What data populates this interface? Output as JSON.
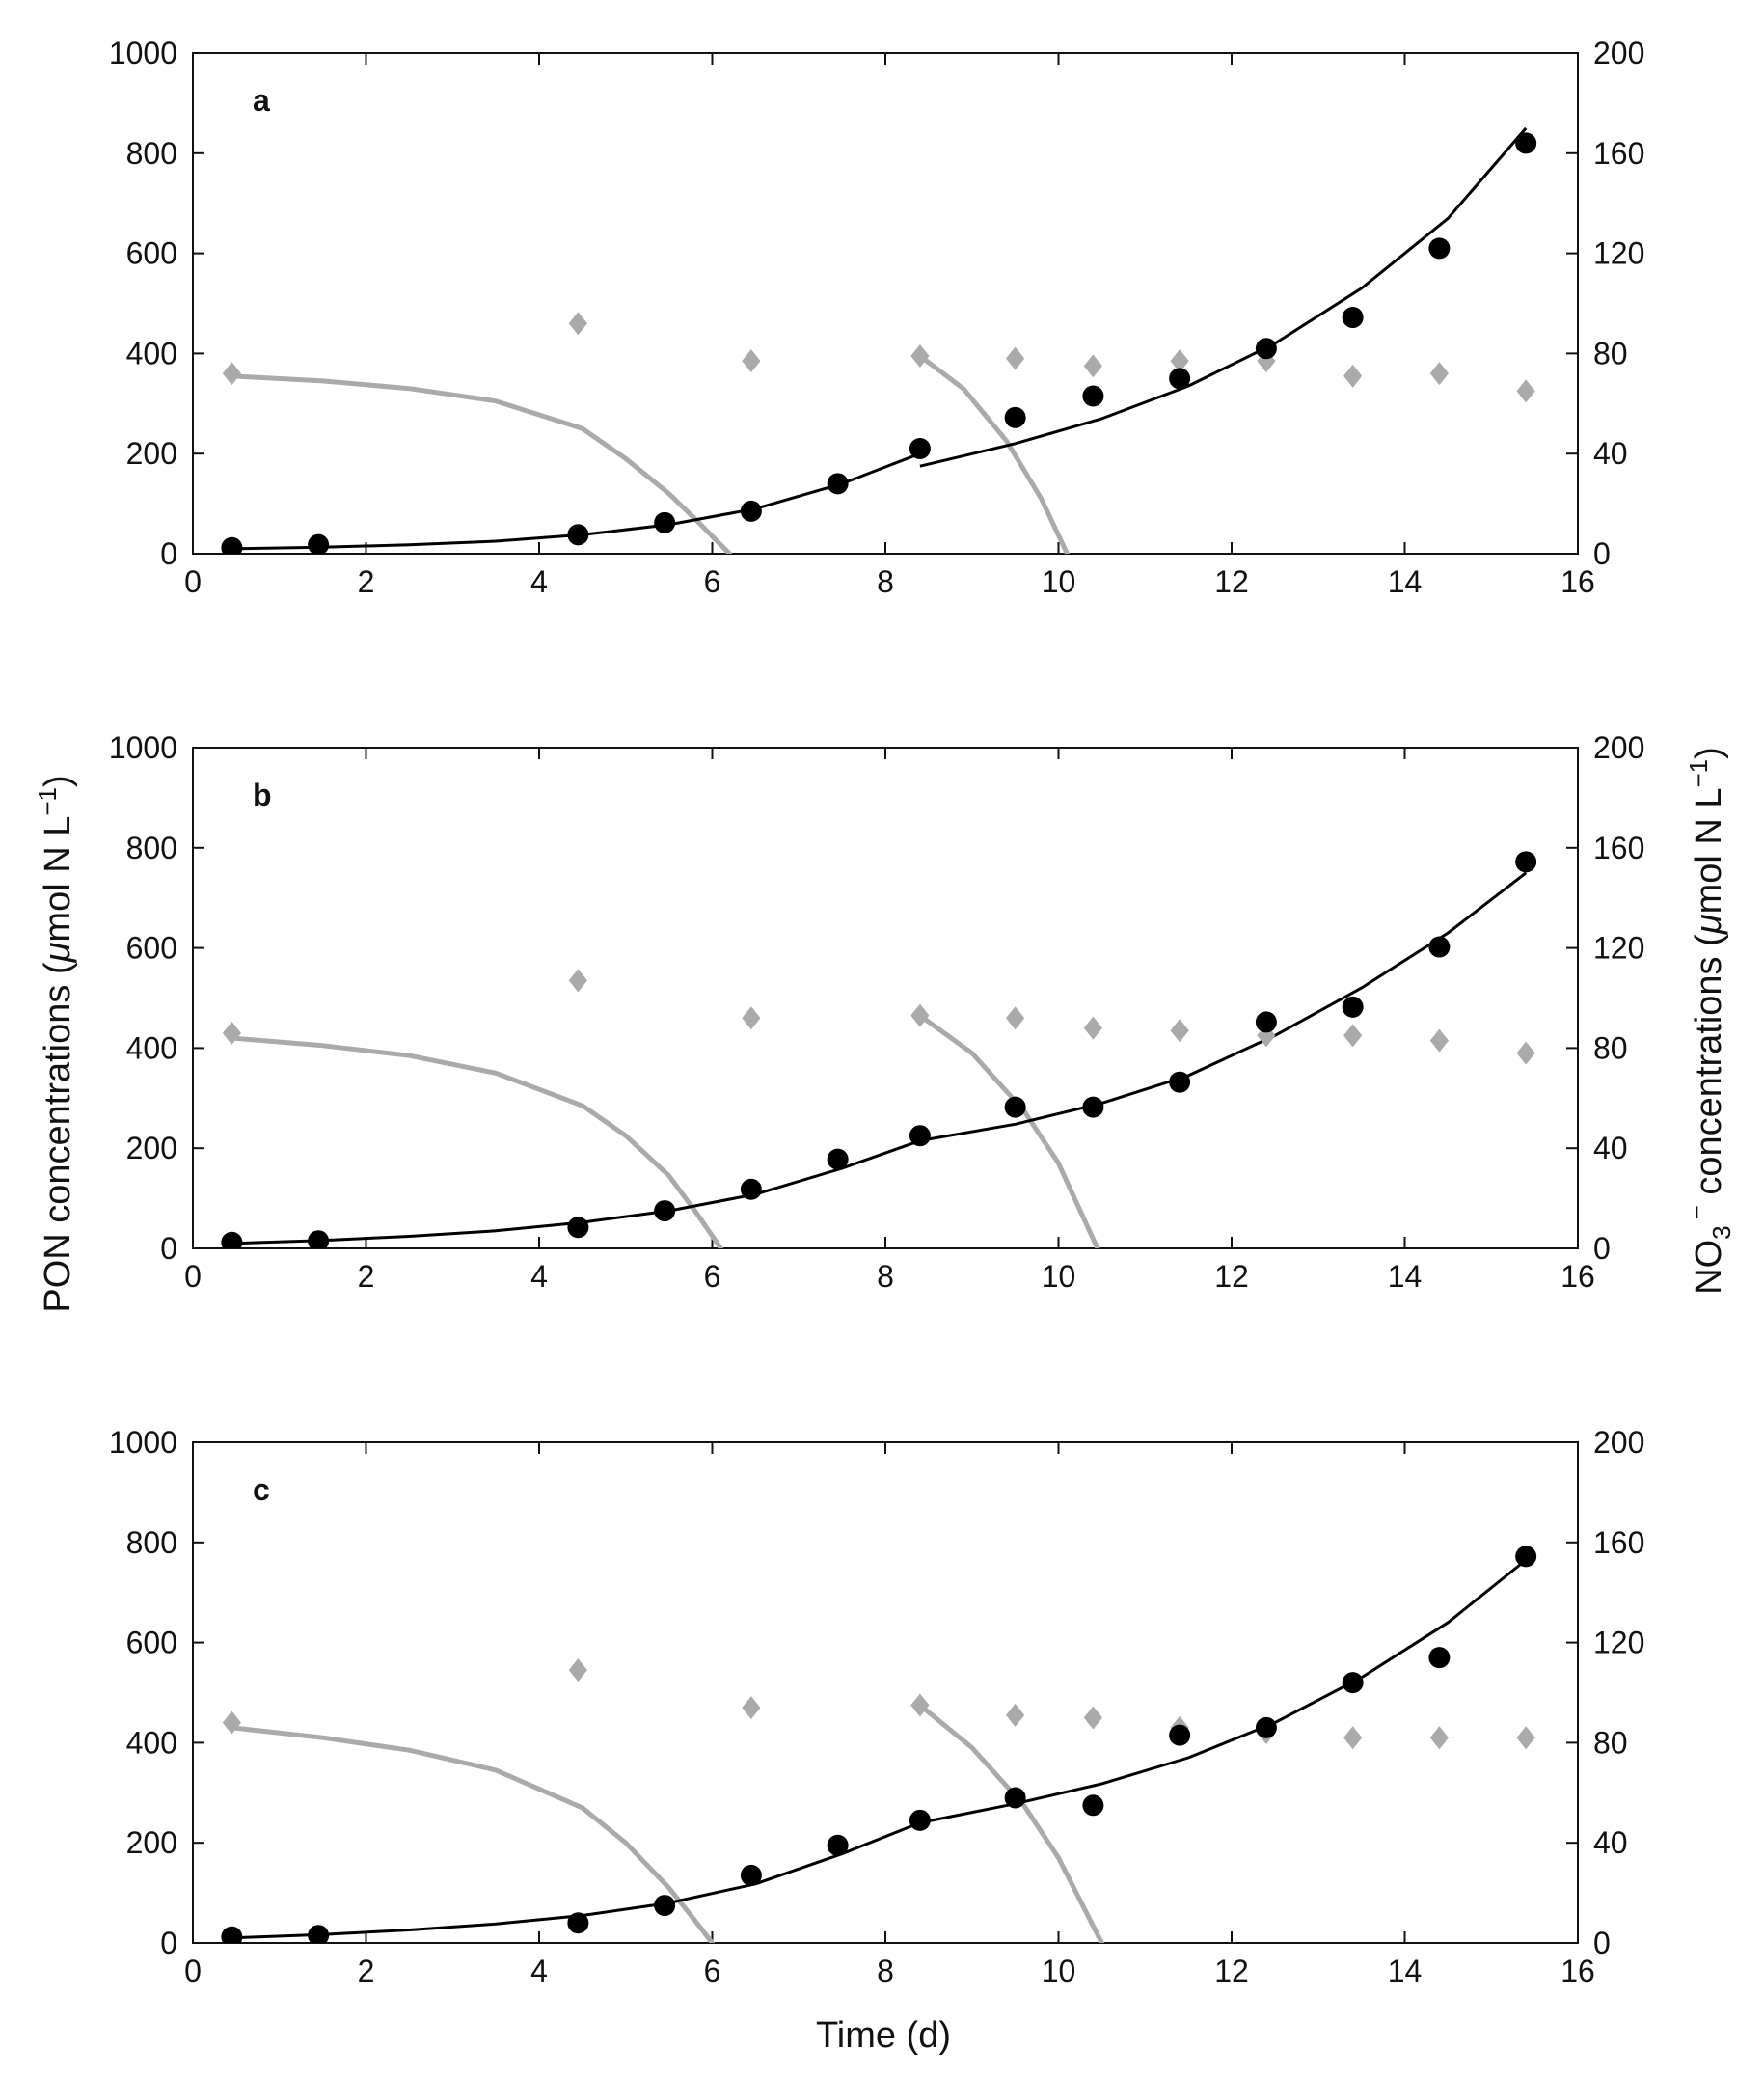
{
  "chart_data": {
    "type": "scatter",
    "xlabel": "Time (d)",
    "ylabel_left": {
      "main": "PON concentrations (",
      "mu": "μ",
      "rest": "mol N L",
      "sup": "−1",
      "end": ")"
    },
    "ylabel_right": {
      "main": "NO",
      "sub": "3",
      "sup_minus": "−",
      "rest": " concentrations (",
      "mu": "μ",
      "rest2": "mol N L",
      "sup": "−1",
      "end": ")"
    },
    "xlim": [
      0,
      16
    ],
    "xticks": [
      0,
      2,
      4,
      6,
      8,
      10,
      12,
      14,
      16
    ],
    "ylim_left": [
      0,
      1000
    ],
    "yticks_left": [
      0,
      200,
      400,
      600,
      800,
      1000
    ],
    "ylim_right": [
      0,
      200
    ],
    "yticks_right": [
      0,
      40,
      80,
      120,
      160,
      200
    ],
    "colors": {
      "pon": "#000000",
      "nitrate": "#aaaaaa",
      "axis": "#111111"
    },
    "panels": [
      {
        "label": "a",
        "pon_points": {
          "x": [
            0.45,
            1.45,
            4.45,
            5.45,
            6.45,
            7.45,
            8.4,
            9.5,
            10.4,
            11.4,
            12.4,
            13.4,
            14.4,
            15.4
          ],
          "y": [
            12,
            18,
            38,
            62,
            85,
            140,
            210,
            272,
            315,
            350,
            410,
            472,
            610,
            820
          ]
        },
        "no3_points": {
          "x": [
            0.45,
            4.45,
            6.45,
            8.4,
            9.5,
            10.4,
            11.4,
            12.4,
            13.4,
            14.4,
            15.4
          ],
          "y": [
            72,
            92,
            77,
            79,
            78,
            75,
            77,
            77,
            71,
            72,
            65
          ]
        },
        "pon_model": [
          {
            "x": [
              0.45,
              1.5,
              2.5,
              3.5,
              4.5,
              5.5,
              6.5,
              7.5,
              8.4
            ],
            "y": [
              10,
              13,
              18,
              25,
              38,
              58,
              90,
              140,
              200
            ]
          },
          {
            "x": [
              8.4,
              9.5,
              10.5,
              11.5,
              12.5,
              13.5,
              14.5,
              15.4
            ],
            "y": [
              175,
              220,
              270,
              335,
              420,
              530,
              670,
              850
            ]
          }
        ],
        "no3_model": [
          {
            "x": [
              0.45,
              1.5,
              2.5,
              3.5,
              4.5,
              5.0,
              5.5,
              5.8,
              6.2
            ],
            "y": [
              71,
              69,
              66,
              61,
              50,
              38,
              24,
              14,
              0
            ]
          },
          {
            "x": [
              8.4,
              8.9,
              9.4,
              9.8,
              10.1
            ],
            "y": [
              79,
              66,
              45,
              22,
              0
            ]
          }
        ]
      },
      {
        "label": "b",
        "pon_points": {
          "x": [
            0.45,
            1.45,
            4.45,
            5.45,
            6.45,
            7.45,
            8.4,
            9.5,
            10.4,
            11.4,
            12.4,
            13.4,
            14.4,
            15.4
          ],
          "y": [
            12,
            15,
            42,
            75,
            118,
            178,
            225,
            282,
            282,
            332,
            452,
            482,
            602,
            772
          ]
        },
        "no3_points": {
          "x": [
            0.45,
            4.45,
            6.45,
            8.4,
            9.5,
            10.4,
            11.4,
            12.4,
            13.4,
            14.4,
            15.4
          ],
          "y": [
            86,
            107,
            92,
            93,
            92,
            88,
            87,
            85,
            85,
            83,
            78
          ]
        },
        "pon_model": [
          {
            "x": [
              0.45,
              1.5,
              2.5,
              3.5,
              4.5,
              5.5,
              6.5,
              7.5,
              8.4,
              9.5,
              10.5,
              11.5,
              12.5,
              13.5,
              14.5,
              15.4
            ],
            "y": [
              10,
              16,
              24,
              35,
              52,
              75,
              108,
              160,
              215,
              248,
              290,
              345,
              425,
              520,
              630,
              750
            ]
          }
        ],
        "no3_model": [
          {
            "x": [
              0.45,
              1.5,
              2.5,
              3.5,
              4.5,
              5.0,
              5.5,
              5.8,
              6.1
            ],
            "y": [
              84,
              81,
              77,
              70,
              57,
              45,
              29,
              15,
              0
            ]
          },
          {
            "x": [
              8.4,
              9.0,
              9.6,
              10.0,
              10.45
            ],
            "y": [
              93,
              78,
              55,
              34,
              0
            ]
          }
        ]
      },
      {
        "label": "c",
        "pon_points": {
          "x": [
            0.45,
            1.45,
            4.45,
            5.45,
            6.45,
            7.45,
            8.4,
            9.5,
            10.4,
            11.4,
            12.4,
            13.4,
            14.4,
            15.4
          ],
          "y": [
            12,
            15,
            40,
            75,
            135,
            195,
            245,
            290,
            275,
            415,
            430,
            520,
            570,
            772
          ]
        },
        "no3_points": {
          "x": [
            0.45,
            4.45,
            6.45,
            8.4,
            9.5,
            10.4,
            11.4,
            12.4,
            13.4,
            14.4,
            15.4
          ],
          "y": [
            88,
            109,
            94,
            95,
            91,
            90,
            86,
            84,
            82,
            82,
            82
          ]
        },
        "pon_model": [
          {
            "x": [
              0.45,
              1.5,
              2.5,
              3.5,
              4.5,
              5.5,
              6.5,
              7.5,
              8.4,
              9.5,
              10.5,
              11.5,
              12.5,
              13.5,
              14.5,
              15.4
            ],
            "y": [
              10,
              17,
              26,
              38,
              55,
              80,
              118,
              178,
              240,
              278,
              318,
              370,
              440,
              530,
              640,
              765
            ]
          }
        ],
        "no3_model": [
          {
            "x": [
              0.45,
              1.5,
              2.5,
              3.5,
              4.5,
              5.0,
              5.5,
              5.8,
              6.0
            ],
            "y": [
              86,
              82,
              77,
              69,
              54,
              40,
              22,
              9,
              0
            ]
          },
          {
            "x": [
              8.4,
              9.0,
              9.6,
              10.0,
              10.5
            ],
            "y": [
              95,
              78,
              55,
              34,
              0
            ]
          }
        ]
      }
    ]
  }
}
